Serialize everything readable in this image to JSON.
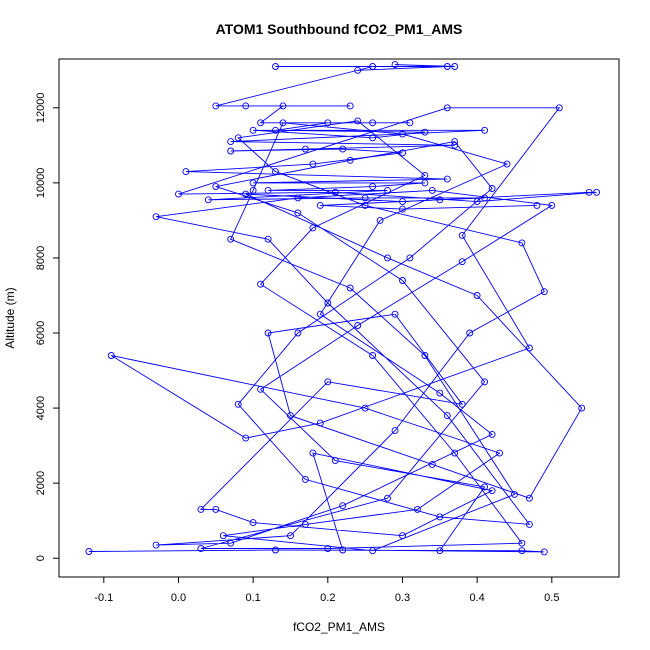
{
  "chart_data": {
    "type": "line",
    "title": "ATOM1 Southbound fCO2_PM1_AMS",
    "xlabel": "fCO2_PM1_AMS",
    "ylabel": "Altitude (m)",
    "xlim": [
      -0.16,
      0.59
    ],
    "ylim": [
      -500,
      13300
    ],
    "xticks": [
      -0.1,
      0.0,
      0.1,
      0.2,
      0.3,
      0.4,
      0.5
    ],
    "xtick_labels": [
      "-0.1",
      "0.0",
      "0.1",
      "0.2",
      "0.3",
      "0.4",
      "0.5"
    ],
    "yticks": [
      0,
      2000,
      4000,
      6000,
      8000,
      10000,
      12000
    ],
    "ytick_labels": [
      "0",
      "2000",
      "4000",
      "6000",
      "8000",
      "10000",
      "12000"
    ],
    "grid": false,
    "color": "#0000ff",
    "marker": "open-circle",
    "series": [
      {
        "points": [
          [
            -0.12,
            180
          ],
          [
            0.13,
            220
          ],
          [
            0.46,
            200
          ],
          [
            0.49,
            170
          ],
          [
            0.22,
            220
          ],
          [
            0.18,
            2800
          ],
          [
            0.42,
            1800
          ],
          [
            0.3,
            600
          ],
          [
            0.1,
            950
          ],
          [
            0.05,
            1300
          ],
          [
            0.03,
            1300
          ],
          [
            0.2,
            4700
          ],
          [
            0.38,
            4100
          ],
          [
            0.29,
            6500
          ],
          [
            0.12,
            6000
          ],
          [
            0.15,
            3800
          ],
          [
            0.34,
            2500
          ],
          [
            0.47,
            1600
          ],
          [
            0.54,
            4000
          ],
          [
            0.4,
            7000
          ],
          [
            0.28,
            8000
          ],
          [
            0.09,
            9700
          ],
          [
            0.3,
            9500
          ],
          [
            0.55,
            9750
          ],
          [
            0.56,
            9750
          ],
          [
            0.4,
            9500
          ],
          [
            0.21,
            9750
          ],
          [
            0.0,
            9700
          ],
          [
            0.36,
            12000
          ],
          [
            0.51,
            12000
          ],
          [
            0.38,
            8600
          ],
          [
            0.47,
            5600
          ],
          [
            0.19,
            3600
          ],
          [
            0.09,
            3200
          ],
          [
            -0.09,
            5400
          ],
          [
            0.25,
            4000
          ],
          [
            0.43,
            2800
          ],
          [
            0.32,
            1300
          ],
          [
            0.17,
            900
          ],
          [
            0.06,
            600
          ],
          [
            0.26,
            200
          ],
          [
            0.45,
            1700
          ],
          [
            0.33,
            5400
          ],
          [
            0.23,
            7200
          ],
          [
            0.07,
            8500
          ],
          [
            0.1,
            9800
          ],
          [
            0.14,
            11600
          ],
          [
            0.3,
            11300
          ],
          [
            0.44,
            10500
          ],
          [
            0.27,
            9000
          ],
          [
            0.19,
            6500
          ],
          [
            0.35,
            4400
          ],
          [
            0.42,
            3300
          ],
          [
            0.22,
            1400
          ],
          [
            0.07,
            400
          ],
          [
            -0.03,
            350
          ],
          [
            0.15,
            600
          ],
          [
            0.29,
            3400
          ],
          [
            0.39,
            6000
          ],
          [
            0.49,
            7100
          ],
          [
            0.46,
            8400
          ],
          [
            0.25,
            9400
          ],
          [
            0.13,
            10300
          ],
          [
            0.08,
            11200
          ],
          [
            0.24,
            11650
          ],
          [
            0.33,
            10200
          ],
          [
            0.18,
            8800
          ],
          [
            0.11,
            7300
          ],
          [
            0.26,
            5400
          ],
          [
            0.37,
            2800
          ],
          [
            0.46,
            400
          ],
          [
            0.2,
            260
          ],
          [
            0.03,
            260
          ],
          [
            0.28,
            1600
          ],
          [
            0.41,
            4700
          ],
          [
            0.3,
            7400
          ],
          [
            0.16,
            9200
          ],
          [
            0.05,
            9900
          ],
          [
            0.23,
            10600
          ],
          [
            0.37,
            11100
          ],
          [
            0.42,
            9850
          ],
          [
            0.31,
            8000
          ],
          [
            0.16,
            6000
          ],
          [
            0.08,
            4100
          ],
          [
            0.17,
            2100
          ],
          [
            0.35,
            1100
          ],
          [
            0.47,
            900
          ],
          [
            0.36,
            3800
          ],
          [
            0.2,
            6800
          ],
          [
            0.12,
            8500
          ],
          [
            -0.03,
            9100
          ],
          [
            0.16,
            9600
          ],
          [
            0.34,
            9800
          ],
          [
            0.5,
            9400
          ],
          [
            0.38,
            7900
          ],
          [
            0.24,
            6200
          ],
          [
            0.11,
            4500
          ],
          [
            0.21,
            2600
          ],
          [
            0.41,
            1900
          ],
          [
            0.35,
            200
          ]
        ]
      },
      {
        "points": [
          [
            0.13,
            13100
          ],
          [
            0.37,
            13100
          ],
          [
            0.29,
            13150
          ],
          [
            0.36,
            13100
          ],
          [
            0.24,
            13000
          ],
          [
            0.26,
            13100
          ],
          [
            0.05,
            12050
          ],
          [
            0.23,
            12050
          ],
          [
            0.09,
            12050
          ],
          [
            0.14,
            12050
          ],
          [
            0.11,
            11600
          ],
          [
            0.26,
            11600
          ],
          [
            0.31,
            11600
          ],
          [
            0.2,
            11600
          ],
          [
            0.13,
            11400
          ],
          [
            0.33,
            11350
          ],
          [
            0.26,
            11200
          ],
          [
            0.1,
            11400
          ],
          [
            0.41,
            11400
          ],
          [
            0.07,
            11100
          ],
          [
            0.37,
            11000
          ],
          [
            0.17,
            10900
          ],
          [
            0.07,
            10850
          ],
          [
            0.22,
            10900
          ],
          [
            0.3,
            10800
          ],
          [
            0.18,
            10500
          ],
          [
            0.01,
            10300
          ],
          [
            0.36,
            10100
          ],
          [
            0.1,
            10000
          ],
          [
            0.33,
            10000
          ],
          [
            0.26,
            9900
          ],
          [
            0.12,
            9800
          ],
          [
            0.28,
            9800
          ],
          [
            0.04,
            9550
          ],
          [
            0.25,
            9600
          ],
          [
            0.41,
            9600
          ],
          [
            0.35,
            9550
          ],
          [
            0.19,
            9400
          ],
          [
            0.3,
            9300
          ],
          [
            0.48,
            9400
          ]
        ]
      }
    ]
  }
}
